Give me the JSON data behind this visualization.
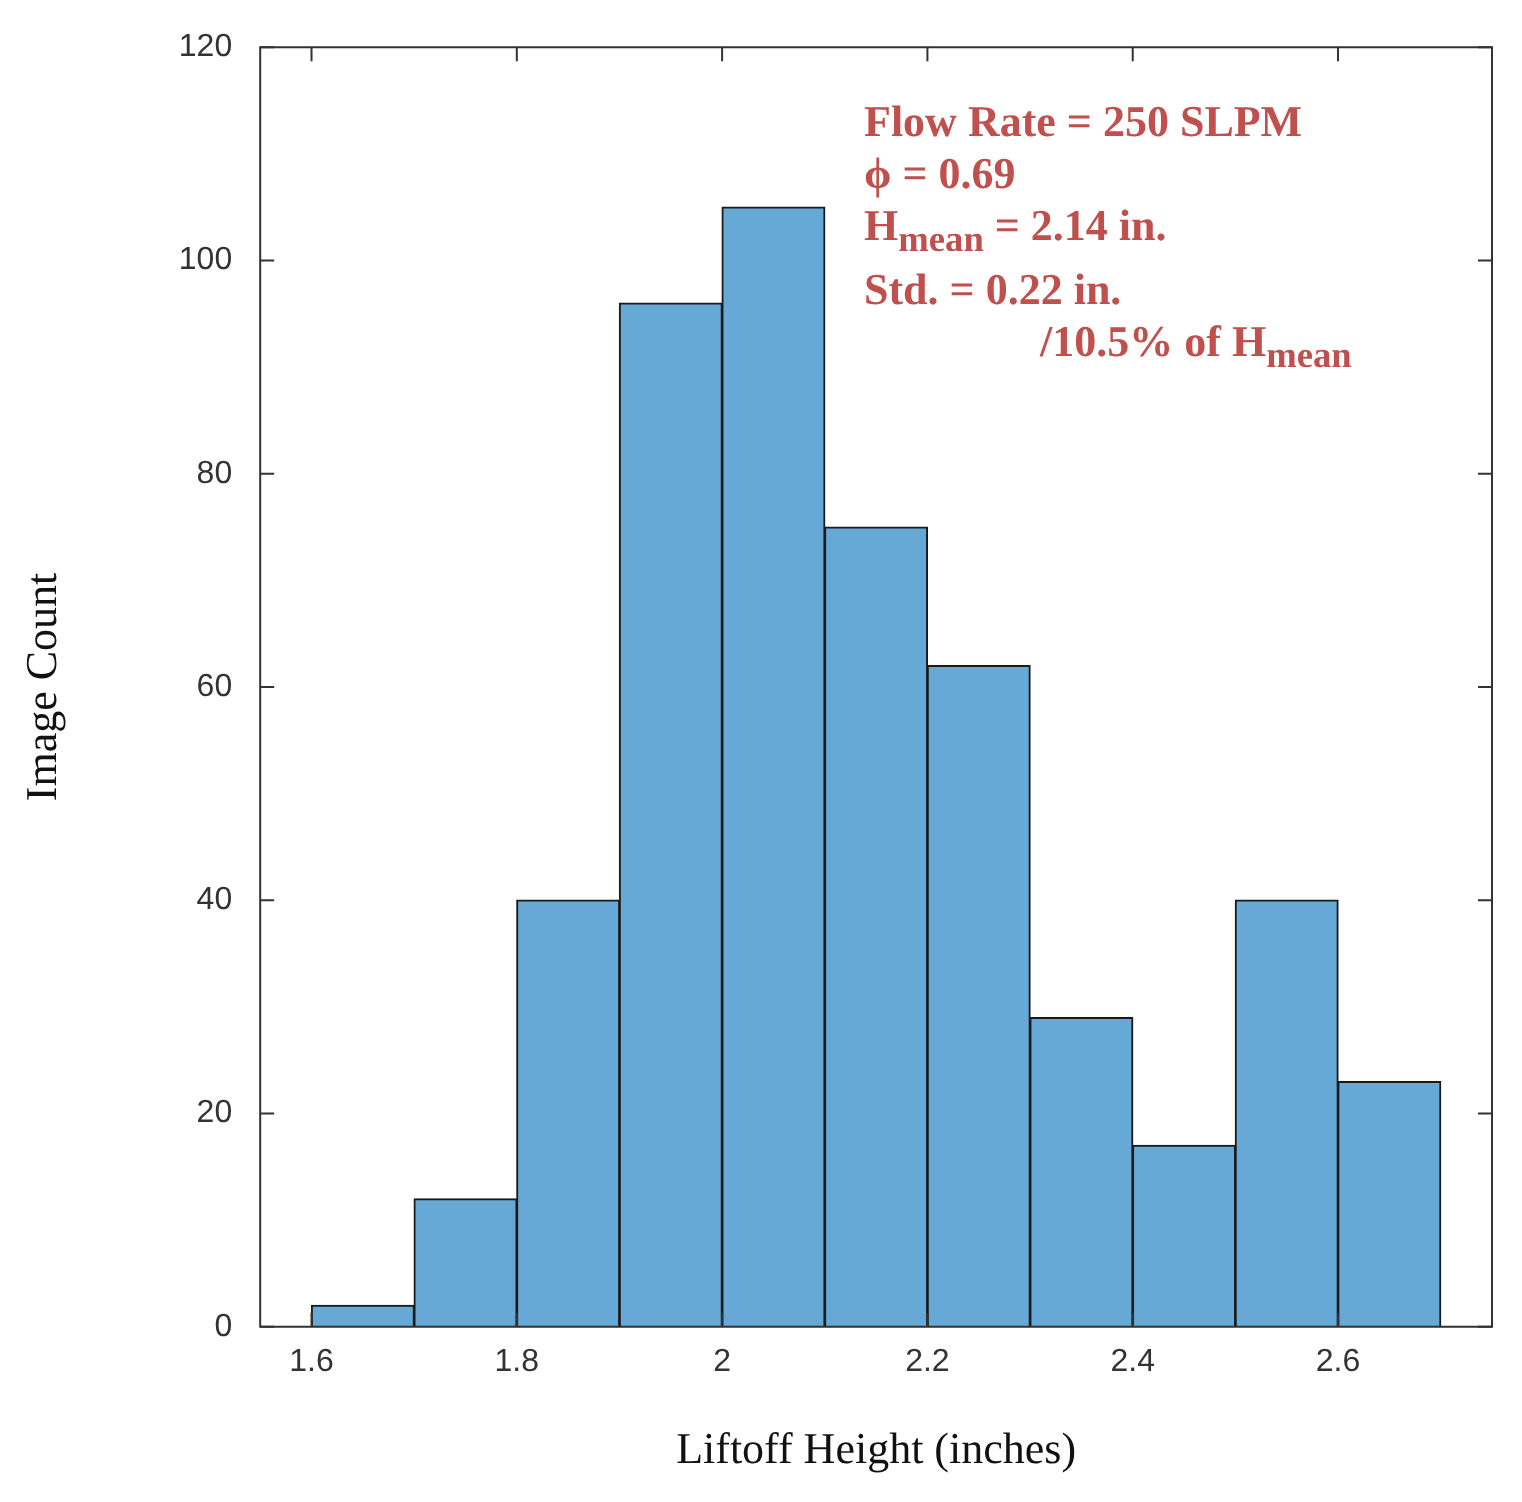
{
  "chart_data": {
    "type": "histogram",
    "xlabel": "Liftoff Height (inches)",
    "ylabel": "Image Count",
    "bins": [
      1.6,
      1.7,
      1.8,
      1.9,
      2.0,
      2.1,
      2.2,
      2.3,
      2.4,
      2.5,
      2.6,
      2.7
    ],
    "values": [
      2,
      12,
      40,
      96,
      105,
      75,
      62,
      29,
      17,
      40,
      23
    ],
    "color": "#66a9d6",
    "xlim": [
      1.55,
      2.75
    ],
    "xticks": [
      {
        "value": 1.6,
        "label": "1.6"
      },
      {
        "value": 1.8,
        "label": "1.8"
      },
      {
        "value": 2,
        "label": "2"
      },
      {
        "value": 2.2,
        "label": "2.2"
      },
      {
        "value": 2.4,
        "label": "2.4"
      },
      {
        "value": 2.6,
        "label": "2.6"
      }
    ],
    "ylim": [
      0,
      120
    ],
    "yticks": [
      0,
      20,
      40,
      60,
      80,
      100,
      120
    ],
    "grid": false,
    "legend": false,
    "annotations": [
      "Flow Rate = 250 SLPM",
      "ϕ = 0.69",
      "H$_{mean}$ = 2.14 in.",
      "Std. = 0.22 in.",
      "/10.5% of H$_{mean}$"
    ]
  }
}
